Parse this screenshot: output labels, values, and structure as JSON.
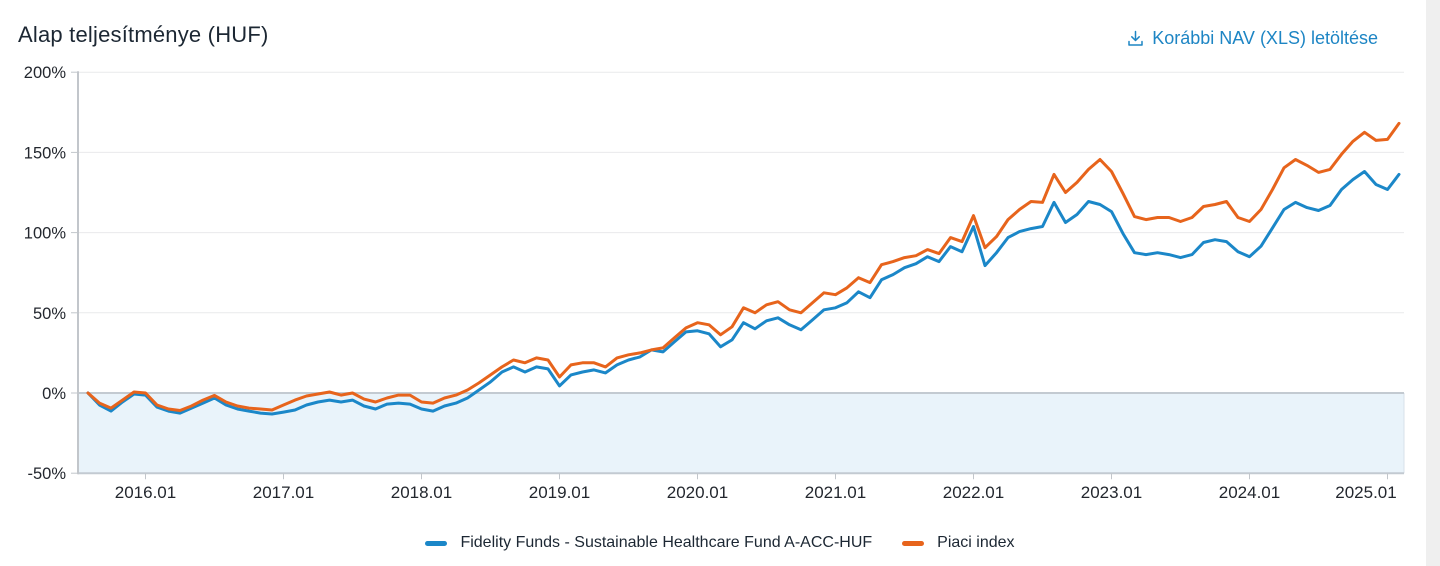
{
  "header": {
    "title": "Alap teljesítménye (HUF)",
    "download_label": "Korábbi NAV (XLS) letöltése"
  },
  "colors": {
    "fund_line": "#1b87c8",
    "index_line": "#e7641c",
    "link": "#1d85c4",
    "grid_light": "#e9eaec",
    "grid_strong": "#c3cad1",
    "axis": "#c2c6cb",
    "negative_fill": "#e9f3fa",
    "text_dark": "#1c2733",
    "tick_text": "#23272e"
  },
  "chart_data": {
    "type": "line",
    "title": "Alap teljesítménye (HUF)",
    "x_start_month": "2015-08",
    "x_end_month": "2025-02",
    "x_cadence": "monthly",
    "x_tick_labels": [
      "2016.01",
      "2017.01",
      "2018.01",
      "2019.01",
      "2020.01",
      "2021.01",
      "2022.01",
      "2023.01",
      "2024.01",
      "2025.01"
    ],
    "x_tick_month_indices": [
      5,
      17,
      29,
      41,
      53,
      65,
      77,
      89,
      101,
      113
    ],
    "y_tick_labels": [
      "200%",
      "150%",
      "100%",
      "50%",
      "0%",
      "-50%"
    ],
    "y_ticks": [
      200,
      150,
      100,
      50,
      0,
      -50
    ],
    "ylim": [
      -50,
      200
    ],
    "unit": "%",
    "grid": true,
    "legend_position": "bottom",
    "series": [
      {
        "name": "Fidelity Funds - Sustainable Healthcare Fund A-ACC-HUF",
        "color": "#1b87c8",
        "values": [
          0,
          -7.5,
          -11.3,
          -5.6,
          -0.6,
          -1.3,
          -8.8,
          -11.3,
          -12.5,
          -9.4,
          -6.3,
          -3.1,
          -7.5,
          -10.0,
          -11.3,
          -12.5,
          -13.1,
          -11.9,
          -10.6,
          -7.5,
          -5.6,
          -4.4,
          -5.6,
          -4.4,
          -8.1,
          -10.0,
          -6.9,
          -6.3,
          -6.9,
          -10.0,
          -11.3,
          -8.1,
          -6.3,
          -3.1,
          1.9,
          6.9,
          13.1,
          16.3,
          13.1,
          16.3,
          15.0,
          4.4,
          11.3,
          13.1,
          14.4,
          12.5,
          17.5,
          20.6,
          22.5,
          26.9,
          25.6,
          31.9,
          38.1,
          38.8,
          36.9,
          28.8,
          33.1,
          43.8,
          40.0,
          45.0,
          46.9,
          42.5,
          39.4,
          45.6,
          51.9,
          53.1,
          56.3,
          63.1,
          59.4,
          70.6,
          73.8,
          78.1,
          80.6,
          85.0,
          81.9,
          91.3,
          88.1,
          103.8,
          79.4,
          87.5,
          96.9,
          100.6,
          102.5,
          103.8,
          118.8,
          106.3,
          111.3,
          119.4,
          117.5,
          113.1,
          99.4,
          87.5,
          86.3,
          87.5,
          86.3,
          84.4,
          86.3,
          93.8,
          95.6,
          94.4,
          88.1,
          85.0,
          91.5,
          102.9,
          114.4,
          118.8,
          115.6,
          113.8,
          116.9,
          126.9,
          133.1,
          138.1,
          130.0,
          126.9,
          136.3
        ]
      },
      {
        "name": "Piaci index",
        "color": "#e7641c",
        "values": [
          0,
          -6.3,
          -9.4,
          -4.4,
          0.6,
          0.0,
          -7.5,
          -10.0,
          -10.9,
          -8.1,
          -4.4,
          -1.5,
          -5.6,
          -8.1,
          -9.4,
          -10.0,
          -10.6,
          -7.5,
          -4.4,
          -1.9,
          -0.6,
          0.6,
          -1.3,
          0.0,
          -3.8,
          -5.6,
          -3.1,
          -1.3,
          -1.3,
          -5.6,
          -6.3,
          -3.1,
          -1.3,
          1.9,
          6.3,
          11.3,
          16.3,
          20.6,
          18.8,
          21.9,
          20.6,
          10.0,
          17.5,
          18.8,
          18.8,
          16.3,
          21.9,
          23.8,
          25.0,
          26.9,
          28.1,
          34.4,
          40.6,
          43.8,
          42.5,
          36.3,
          41.3,
          53.1,
          50.0,
          55.0,
          56.9,
          51.9,
          50.0,
          56.3,
          62.5,
          61.3,
          65.6,
          71.9,
          68.8,
          80.0,
          81.9,
          84.4,
          85.6,
          89.4,
          86.9,
          96.9,
          94.4,
          110.6,
          90.6,
          97.5,
          108.1,
          114.4,
          119.4,
          118.8,
          136.3,
          125.0,
          131.3,
          139.4,
          145.6,
          138.1,
          124.4,
          110.0,
          108.1,
          109.4,
          109.4,
          106.9,
          109.4,
          116.3,
          117.5,
          119.4,
          109.4,
          106.9,
          114.4,
          126.9,
          140.4,
          145.6,
          141.9,
          137.5,
          139.4,
          148.8,
          156.9,
          162.5,
          157.5,
          158.1,
          168.1
        ]
      }
    ]
  }
}
